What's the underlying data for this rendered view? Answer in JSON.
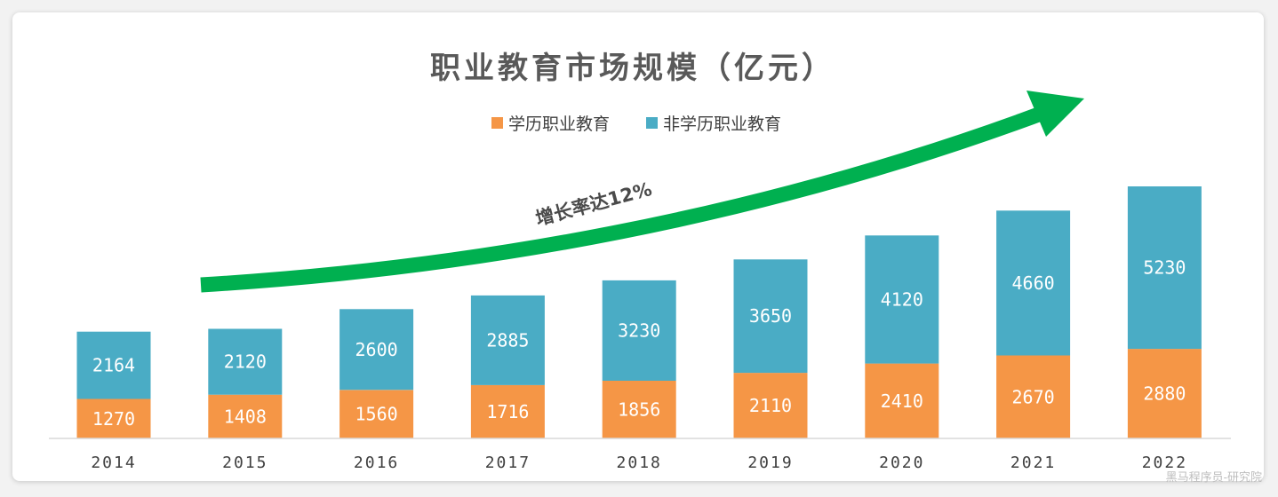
{
  "chart_data": {
    "type": "bar",
    "stacked": true,
    "title": "职业教育市场规模（亿元）",
    "categories": [
      "2014",
      "2015",
      "2016",
      "2017",
      "2018",
      "2019",
      "2020",
      "2021",
      "2022"
    ],
    "series": [
      {
        "name": "学历职业教育",
        "color": "#f59646",
        "values": [
          1270,
          1408,
          1560,
          1716,
          1856,
          2110,
          2410,
          2670,
          2880
        ]
      },
      {
        "name": "非学历职业教育",
        "color": "#4aacc5",
        "values": [
          2164,
          2120,
          2600,
          2885,
          3230,
          3650,
          4120,
          4660,
          5230
        ]
      }
    ],
    "ylim": [
      0,
      8110
    ],
    "legend_position": "top-center",
    "grid": false,
    "annotation": {
      "text": "增长率达12%",
      "arrow_color": "#00b050"
    }
  },
  "watermark": "黑马程序员-研究院"
}
